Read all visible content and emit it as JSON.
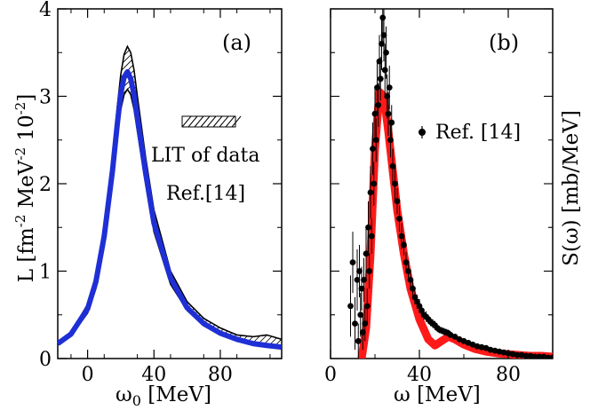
{
  "chart_data": [
    {
      "type": "line",
      "panel_label": "(a)",
      "xlabel_main": "ω",
      "xlabel_sub": "0",
      "xlabel_rest": " [MeV]",
      "ylabel": {
        "base": "L [fm",
        "exp1": "-2",
        "mid": " MeV",
        "exp2": "-2",
        "mid2": " 10",
        "exp3": "-2",
        "end": "]"
      },
      "xlim": [
        -18,
        117
      ],
      "ylim": [
        0,
        4
      ],
      "xticks": [
        0,
        40,
        80
      ],
      "xtick_labels": [
        "0",
        "40",
        "80"
      ],
      "yticks": [
        0,
        1,
        2,
        3,
        4
      ],
      "ytick_labels": [
        "0",
        "1",
        "2",
        "3",
        "4"
      ],
      "legend": {
        "band_label_line1": "LIT of  data",
        "band_label_line2": "Ref.[14]"
      },
      "series": [
        {
          "name": "LIT of data Ref.[14] (upper bound)",
          "color": "#000000",
          "x": [
            -18,
            -10,
            0,
            5,
            10,
            15,
            18,
            20,
            22,
            24,
            26,
            28,
            30,
            35,
            40,
            50,
            60,
            70,
            80,
            90,
            100,
            108,
            117
          ],
          "y": [
            0.18,
            0.3,
            0.62,
            0.95,
            1.5,
            2.3,
            2.9,
            3.25,
            3.48,
            3.57,
            3.5,
            3.3,
            3.0,
            2.3,
            1.7,
            1.0,
            0.65,
            0.46,
            0.35,
            0.27,
            0.25,
            0.27,
            0.22
          ]
        },
        {
          "name": "LIT of data Ref.[14] (lower bound)",
          "color": "#000000",
          "x": [
            -18,
            -10,
            0,
            5,
            10,
            15,
            18,
            20,
            22,
            24,
            26,
            28,
            30,
            35,
            40,
            50,
            60,
            70,
            80,
            90,
            100,
            108,
            117
          ],
          "y": [
            0.16,
            0.26,
            0.52,
            0.8,
            1.28,
            2.0,
            2.55,
            2.85,
            3.02,
            3.08,
            3.02,
            2.85,
            2.6,
            2.0,
            1.45,
            0.85,
            0.55,
            0.38,
            0.27,
            0.2,
            0.16,
            0.15,
            0.12
          ]
        },
        {
          "name": "Calculation (blue band)",
          "color": "#1f2fd6",
          "x": [
            -18,
            -10,
            0,
            5,
            10,
            15,
            18,
            20,
            22,
            24,
            26,
            28,
            30,
            35,
            40,
            50,
            60,
            70,
            80,
            90,
            100,
            108,
            117
          ],
          "y": [
            0.17,
            0.28,
            0.57,
            0.88,
            1.4,
            2.15,
            2.7,
            3.03,
            3.22,
            3.28,
            3.2,
            3.02,
            2.76,
            2.12,
            1.55,
            0.92,
            0.58,
            0.4,
            0.29,
            0.22,
            0.17,
            0.15,
            0.13
          ]
        }
      ]
    },
    {
      "type": "scatter",
      "panel_label": "(b)",
      "xlabel": "ω [MeV]",
      "ylabel": "S(ω) [mb/MeV]",
      "xlim": [
        0,
        100
      ],
      "ylim": [
        0,
        4
      ],
      "xticks": [
        0,
        40,
        80
      ],
      "xtick_labels": [
        "0",
        "40",
        "80"
      ],
      "legend": "Ref. [14]",
      "series": [
        {
          "name": "Calculation (red band)",
          "color": "#ff1a1a",
          "x": [
            14,
            16,
            18,
            20,
            22,
            24,
            26,
            28,
            30,
            33,
            36,
            40,
            44,
            47,
            50,
            53,
            56,
            60,
            65,
            70,
            75,
            80,
            85,
            90,
            95,
            100
          ],
          "y": [
            0.0,
            0.35,
            1.2,
            2.4,
            3.05,
            3.0,
            2.6,
            2.15,
            1.7,
            1.2,
            0.8,
            0.45,
            0.22,
            0.15,
            0.2,
            0.25,
            0.22,
            0.16,
            0.11,
            0.08,
            0.06,
            0.05,
            0.04,
            0.03,
            0.03,
            0.02
          ]
        },
        {
          "name": "Ref. [14]",
          "color": "#000000",
          "points": [
            [
              9,
              0.6,
              0.35
            ],
            [
              10,
              1.1,
              0.35
            ],
            [
              11,
              0.4,
              0.3
            ],
            [
              12,
              0.9,
              0.35
            ],
            [
              12.5,
              0.2,
              0.2
            ],
            [
              13,
              1.0,
              0.3
            ],
            [
              13.5,
              0.5,
              0.25
            ],
            [
              14,
              0.8,
              0.25
            ],
            [
              14.5,
              0.3,
              0.2
            ],
            [
              15,
              0.9,
              0.25
            ],
            [
              15.5,
              0.4,
              0.2
            ],
            [
              16,
              1.2,
              0.3
            ],
            [
              16.5,
              0.6,
              0.2
            ],
            [
              17,
              1.5,
              0.3
            ],
            [
              17.5,
              1.0,
              0.2
            ],
            [
              18,
              1.9,
              0.3
            ],
            [
              18.5,
              1.4,
              0.2
            ],
            [
              19,
              2.4,
              0.3
            ],
            [
              19.5,
              2.0,
              0.25
            ],
            [
              20,
              2.8,
              0.3
            ],
            [
              20.5,
              2.5,
              0.25
            ],
            [
              21,
              3.1,
              0.3
            ],
            [
              21.5,
              2.9,
              0.25
            ],
            [
              22,
              3.4,
              0.3
            ],
            [
              22.5,
              3.2,
              0.25
            ],
            [
              23,
              3.6,
              0.3
            ],
            [
              23.5,
              3.9,
              0.3
            ],
            [
              24,
              3.7,
              0.3
            ],
            [
              24.5,
              3.3,
              0.3
            ],
            [
              25,
              3.5,
              0.3
            ],
            [
              25.5,
              3.0,
              0.25
            ],
            [
              26,
              2.8,
              0.25
            ],
            [
              26.5,
              3.1,
              0.25
            ],
            [
              27,
              2.5,
              0.2
            ],
            [
              27.5,
              2.7,
              0.2
            ],
            [
              28,
              2.2,
              0.2
            ],
            [
              29,
              2.0,
              0.2
            ],
            [
              30,
              1.8,
              0.15
            ],
            [
              31,
              1.6,
              0.15
            ],
            [
              32,
              1.4,
              0.15
            ],
            [
              33,
              1.3,
              0.12
            ],
            [
              34,
              1.1,
              0.12
            ],
            [
              35,
              1.0,
              0.1
            ],
            [
              36,
              0.9,
              0.1
            ],
            [
              37,
              0.8,
              0.1
            ],
            [
              38,
              0.7,
              0.08
            ],
            [
              39,
              0.65,
              0.08
            ],
            [
              40,
              0.6,
              0.08
            ],
            [
              41,
              0.55,
              0.06
            ],
            [
              42,
              0.5,
              0.06
            ],
            [
              43,
              0.48,
              0.06
            ],
            [
              44,
              0.45,
              0.05
            ],
            [
              45,
              0.42,
              0.05
            ],
            [
              46,
              0.4,
              0.05
            ],
            [
              47,
              0.38,
              0.05
            ],
            [
              48,
              0.35,
              0.04
            ],
            [
              49,
              0.33,
              0.04
            ],
            [
              50,
              0.32,
              0.04
            ],
            [
              51,
              0.31,
              0.04
            ],
            [
              52,
              0.3,
              0.04
            ],
            [
              53,
              0.29,
              0.04
            ],
            [
              54,
              0.27,
              0.03
            ],
            [
              56,
              0.25,
              0.03
            ],
            [
              58,
              0.22,
              0.03
            ],
            [
              60,
              0.2,
              0.03
            ],
            [
              62,
              0.18,
              0.02
            ],
            [
              64,
              0.16,
              0.02
            ],
            [
              66,
              0.14,
              0.02
            ],
            [
              68,
              0.13,
              0.02
            ],
            [
              70,
              0.12,
              0.02
            ],
            [
              72,
              0.1,
              0.02
            ],
            [
              74,
              0.09,
              0.02
            ],
            [
              76,
              0.08,
              0.01
            ],
            [
              78,
              0.07,
              0.01
            ],
            [
              80,
              0.06,
              0.01
            ],
            [
              82,
              0.05,
              0.01
            ],
            [
              84,
              0.04,
              0.01
            ],
            [
              86,
              0.04,
              0.01
            ],
            [
              88,
              0.03,
              0.01
            ],
            [
              90,
              0.03,
              0.01
            ],
            [
              92,
              0.02,
              0.01
            ],
            [
              94,
              0.02,
              0.01
            ],
            [
              96,
              0.02,
              0.01
            ],
            [
              98,
              0.01,
              0.01
            ],
            [
              100,
              0.01,
              0.01
            ]
          ]
        }
      ]
    }
  ]
}
